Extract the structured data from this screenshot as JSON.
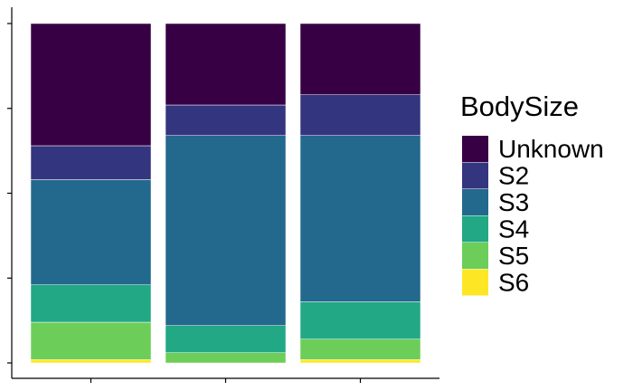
{
  "chart_data": {
    "type": "bar",
    "stacked": true,
    "normalized": true,
    "title": "",
    "xlabel": "",
    "ylabel": "",
    "ylim": [
      0,
      1
    ],
    "grid": false,
    "legend_position": "right",
    "legend_title": "BodySize",
    "categories": [
      "",
      "",
      ""
    ],
    "series": [
      {
        "name": "S6",
        "color": "#FDE725",
        "values": [
          0.01,
          0.0,
          0.01
        ]
      },
      {
        "name": "S5",
        "color": "#6CCE59",
        "values": [
          0.11,
          0.03,
          0.06
        ]
      },
      {
        "name": "S4",
        "color": "#22A884",
        "values": [
          0.11,
          0.08,
          0.11
        ]
      },
      {
        "name": "S3",
        "color": "#23698E",
        "values": [
          0.31,
          0.56,
          0.49
        ]
      },
      {
        "name": "S2",
        "color": "#34357F",
        "values": [
          0.1,
          0.09,
          0.12
        ]
      },
      {
        "name": "Unknown",
        "color": "#370044",
        "values": [
          0.36,
          0.24,
          0.21
        ]
      }
    ]
  }
}
